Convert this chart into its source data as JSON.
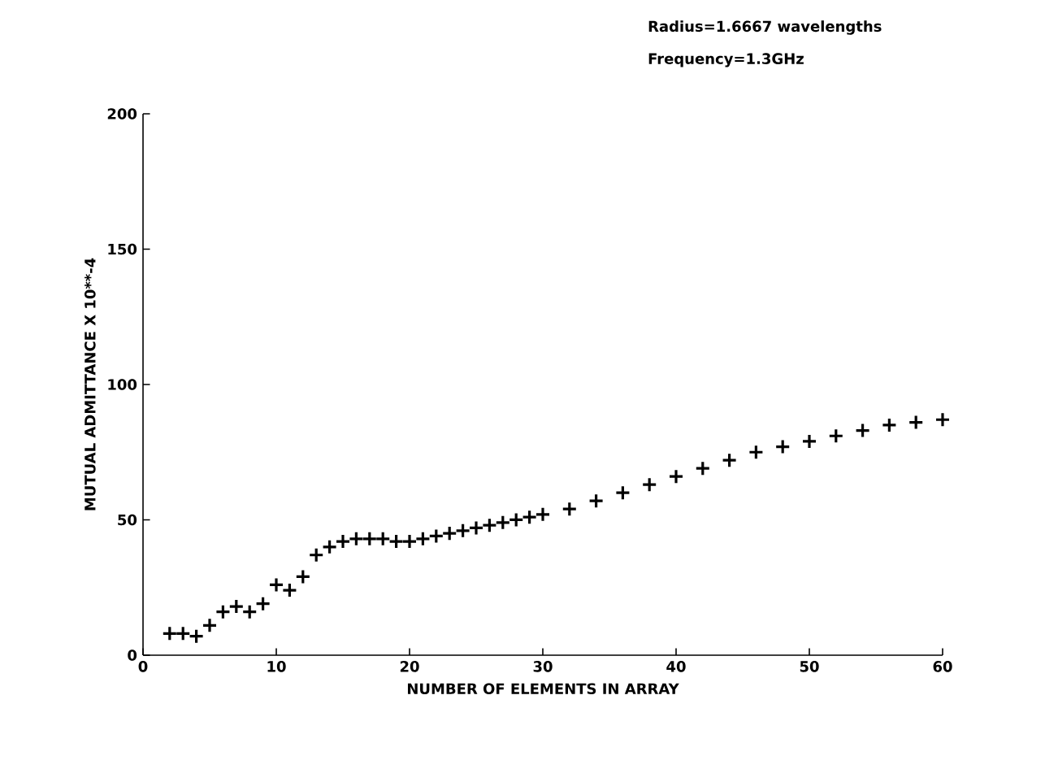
{
  "chart_data": {
    "type": "scatter",
    "xlabel": "NUMBER OF ELEMENTS IN ARRAY",
    "ylabel": "MUTUAL ADMITTANCE X 10**-4",
    "annotations": [
      "Radius=1.6667 wavelengths",
      "Frequency=1.3GHz"
    ],
    "marker": "cross",
    "grid": false,
    "xlim": [
      0,
      60
    ],
    "xticks": [
      0,
      10,
      20,
      30,
      40,
      50,
      60
    ],
    "ylim": [
      0,
      200
    ],
    "yticks": [
      0,
      50,
      100,
      150,
      200
    ],
    "series": [
      {
        "color": "#000000",
        "x": [
          2,
          3,
          4,
          5,
          6,
          7,
          8,
          9,
          10,
          11,
          12,
          13,
          14,
          15,
          16,
          17,
          18,
          19,
          20,
          21,
          22,
          23,
          24,
          25,
          26,
          27,
          28,
          29,
          30,
          32,
          34,
          36,
          38,
          40,
          42,
          44,
          46,
          48,
          50,
          52,
          54,
          56,
          58,
          60
        ],
        "values": [
          8,
          8,
          7,
          11,
          16,
          18,
          16,
          19,
          26,
          24,
          29,
          37,
          40,
          42,
          43,
          43,
          43,
          42,
          42,
          43,
          44,
          45,
          46,
          47,
          48,
          49,
          50,
          51,
          52,
          54,
          57,
          60,
          63,
          66,
          69,
          72,
          75,
          77,
          79,
          81,
          83,
          85,
          86,
          87
        ]
      }
    ]
  }
}
